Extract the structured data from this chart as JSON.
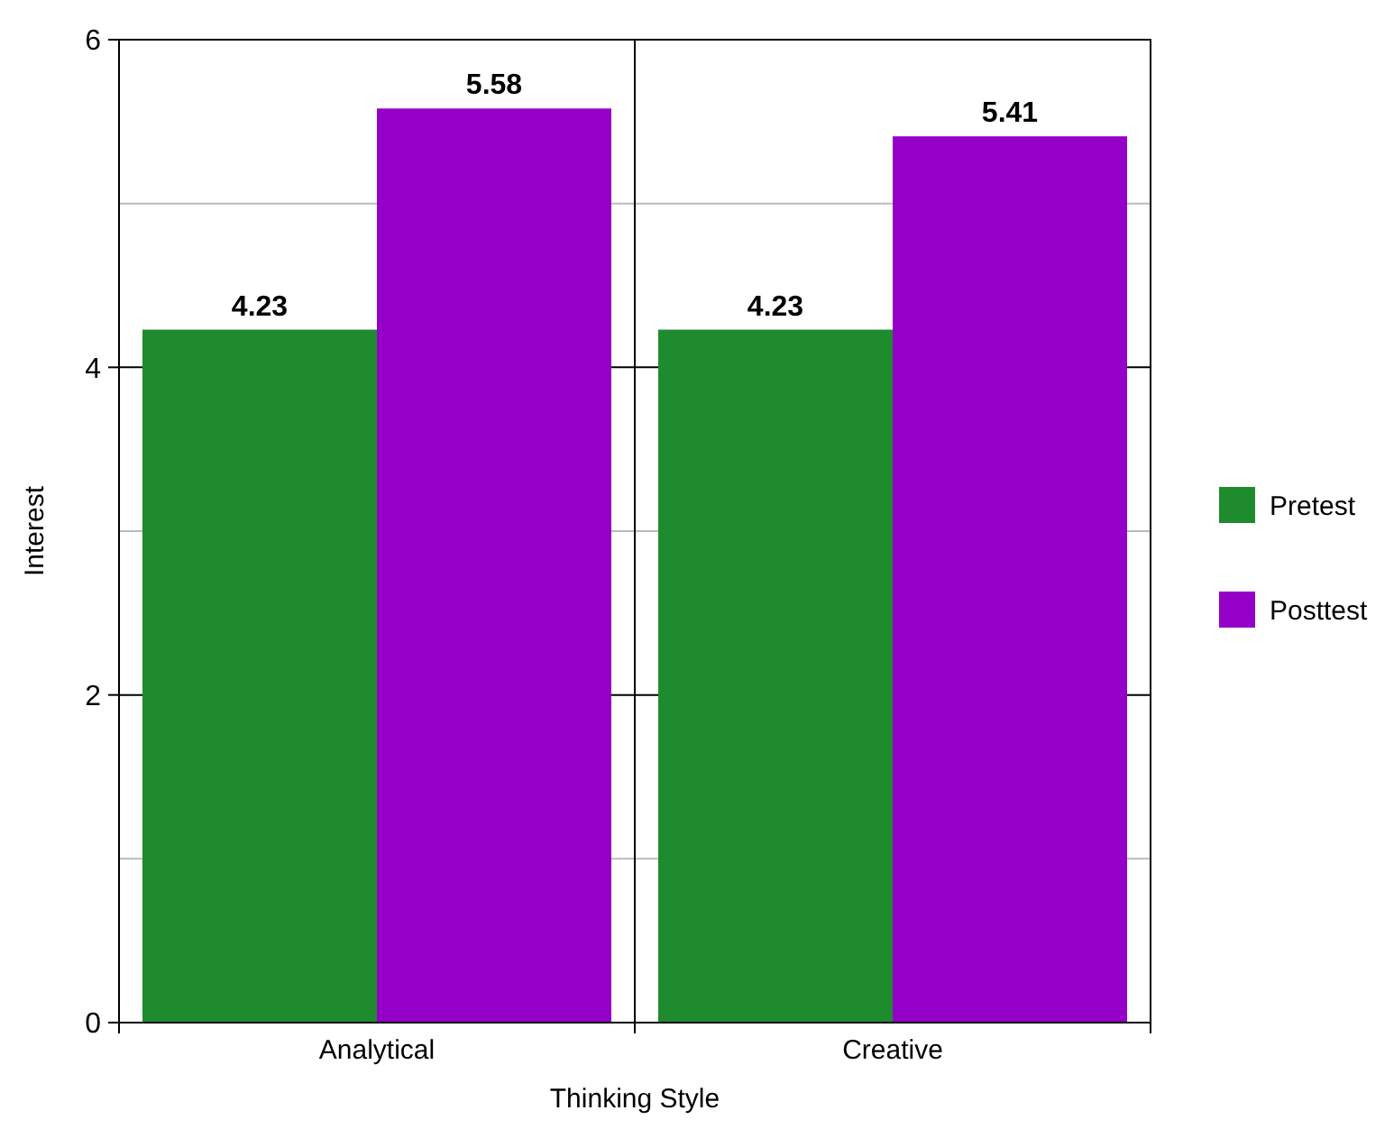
{
  "chart_data": {
    "type": "bar",
    "xlabel": "Thinking Style",
    "ylabel": "Interest",
    "categories": [
      "Analytical",
      "Creative"
    ],
    "series": [
      {
        "name": "Pretest",
        "color": "#1e8b2e",
        "values": [
          4.23,
          4.23
        ]
      },
      {
        "name": "Posttest",
        "color": "#9400c8",
        "values": [
          5.58,
          5.41
        ]
      }
    ],
    "ylim": [
      0,
      6
    ],
    "yticks": [
      0,
      {
        "value": 1,
        "label": null
      },
      2,
      {
        "value": 3,
        "label": null
      },
      4,
      {
        "value": 5,
        "label": null
      },
      6
    ],
    "grid": "y",
    "legend": "right",
    "data_labels": true
  }
}
